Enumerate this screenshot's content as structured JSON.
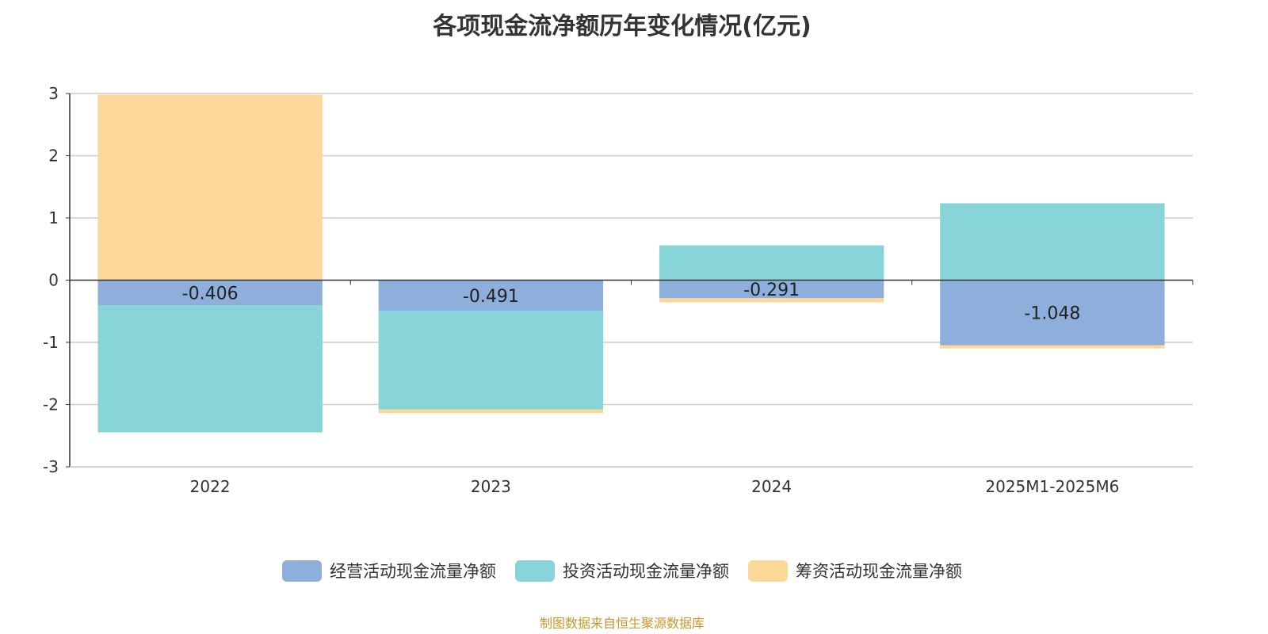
{
  "chart_data": {
    "type": "bar",
    "stacked": true,
    "title": "各项现金流净额历年变化情况(亿元)",
    "categories": [
      "2022",
      "2023",
      "2024",
      "2025M1-2025M6"
    ],
    "series": [
      {
        "name": "经营活动现金流量净额",
        "color": "#8eaedb",
        "values": [
          -0.406,
          -0.491,
          -0.291,
          -1.048
        ],
        "labels": [
          "-0.406",
          "-0.491",
          "-0.291",
          "-1.048"
        ]
      },
      {
        "name": "投资活动现金流量净额",
        "color": "#87d5d8",
        "values": [
          -2.04,
          -1.586,
          0.56,
          1.236
        ]
      },
      {
        "name": "筹资活动现金流量净额",
        "color": "#fdd899",
        "values": [
          2.98,
          -0.06,
          -0.066,
          -0.05
        ]
      }
    ],
    "ylim": [
      -3,
      3
    ],
    "yticks": [
      "3",
      "2",
      "1",
      "0",
      "-1",
      "-2",
      "-3"
    ],
    "grid": true,
    "legend": "bottom"
  },
  "footer": "制图数据来自恒生聚源数据库"
}
